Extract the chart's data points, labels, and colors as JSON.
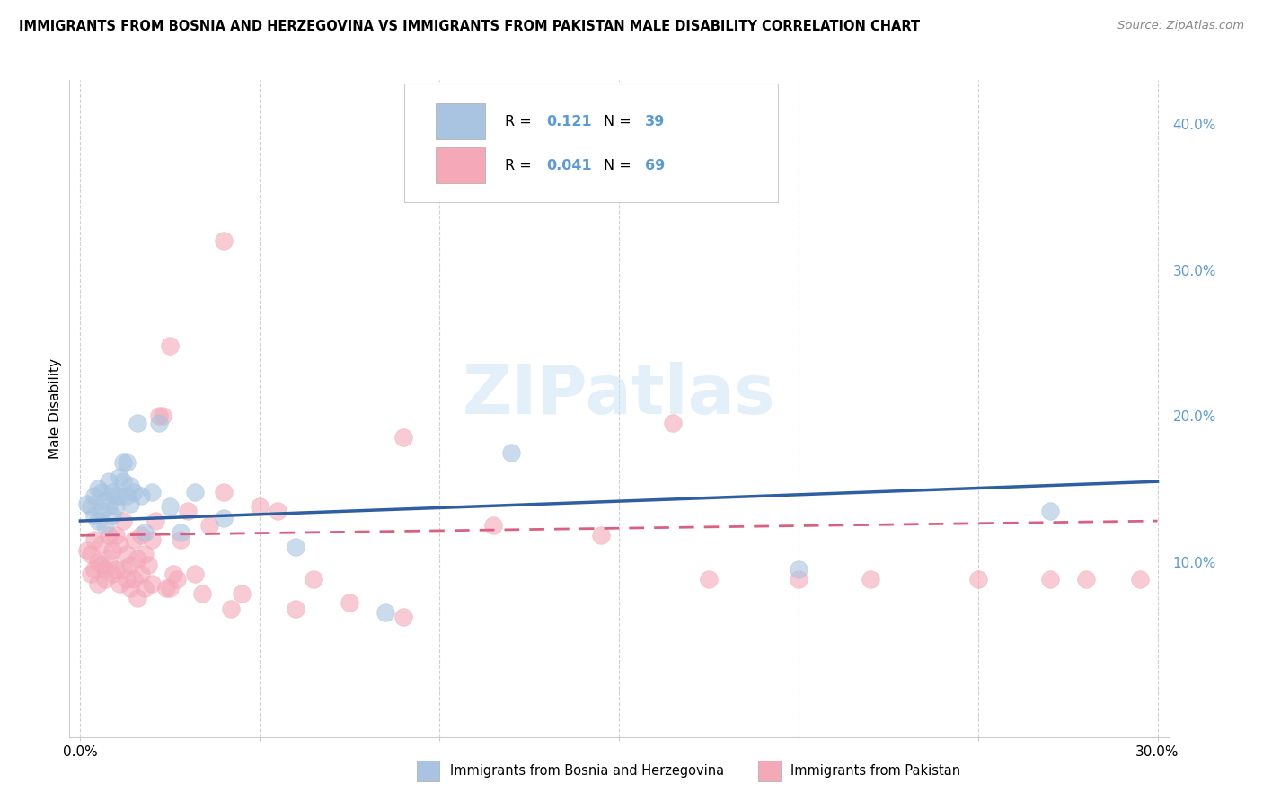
{
  "title": "IMMIGRANTS FROM BOSNIA AND HERZEGOVINA VS IMMIGRANTS FROM PAKISTAN MALE DISABILITY CORRELATION CHART",
  "source": "Source: ZipAtlas.com",
  "ylabel": "Male Disability",
  "bosnia_color": "#a8c4e0",
  "pakistan_color": "#f4a8b8",
  "bosnia_line_color": "#2e5fa3",
  "pakistan_line_color": "#d96080",
  "xlim": [
    0.0,
    0.3
  ],
  "ylim": [
    -0.02,
    0.43
  ],
  "yticks": [
    0.1,
    0.2,
    0.3,
    0.4
  ],
  "ytick_labels": [
    "10.0%",
    "20.0%",
    "30.0%",
    "40.0%"
  ],
  "xtick_labels": [
    "0.0%",
    "30.0%"
  ],
  "right_tick_color": "#5b9bd5",
  "grid_color": "#cccccc",
  "background_color": "#ffffff",
  "watermark": "ZIPatlas",
  "bos_line_x0": 0.0,
  "bos_line_y0": 0.128,
  "bos_line_x1": 0.3,
  "bos_line_y1": 0.155,
  "pak_line_x0": 0.0,
  "pak_line_y0": 0.118,
  "pak_line_x1": 0.3,
  "pak_line_y1": 0.128,
  "bosnia_x": [
    0.002,
    0.003,
    0.004,
    0.004,
    0.005,
    0.005,
    0.006,
    0.006,
    0.007,
    0.007,
    0.008,
    0.008,
    0.009,
    0.009,
    0.01,
    0.01,
    0.011,
    0.011,
    0.012,
    0.012,
    0.013,
    0.013,
    0.014,
    0.014,
    0.015,
    0.016,
    0.017,
    0.018,
    0.02,
    0.022,
    0.025,
    0.028,
    0.032,
    0.04,
    0.06,
    0.085,
    0.12,
    0.2,
    0.27
  ],
  "bosnia_y": [
    0.14,
    0.138,
    0.145,
    0.132,
    0.15,
    0.128,
    0.148,
    0.135,
    0.142,
    0.125,
    0.155,
    0.138,
    0.148,
    0.132,
    0.145,
    0.138,
    0.158,
    0.145,
    0.168,
    0.155,
    0.168,
    0.145,
    0.152,
    0.14,
    0.148,
    0.195,
    0.145,
    0.12,
    0.148,
    0.195,
    0.138,
    0.12,
    0.148,
    0.13,
    0.11,
    0.065,
    0.175,
    0.095,
    0.135
  ],
  "pakistan_x": [
    0.002,
    0.003,
    0.003,
    0.004,
    0.004,
    0.005,
    0.005,
    0.006,
    0.006,
    0.007,
    0.007,
    0.008,
    0.008,
    0.009,
    0.009,
    0.01,
    0.01,
    0.011,
    0.011,
    0.012,
    0.012,
    0.013,
    0.013,
    0.014,
    0.014,
    0.015,
    0.015,
    0.016,
    0.016,
    0.017,
    0.017,
    0.018,
    0.018,
    0.019,
    0.02,
    0.02,
    0.021,
    0.022,
    0.023,
    0.024,
    0.025,
    0.026,
    0.027,
    0.028,
    0.03,
    0.032,
    0.034,
    0.036,
    0.04,
    0.042,
    0.045,
    0.05,
    0.055,
    0.06,
    0.065,
    0.075,
    0.09,
    0.115,
    0.145,
    0.175,
    0.2,
    0.22,
    0.25,
    0.27,
    0.28,
    0.295,
    0.04,
    0.025,
    0.165,
    0.09
  ],
  "pakistan_y": [
    0.108,
    0.092,
    0.105,
    0.095,
    0.115,
    0.1,
    0.085,
    0.098,
    0.112,
    0.095,
    0.088,
    0.102,
    0.118,
    0.092,
    0.108,
    0.118,
    0.095,
    0.112,
    0.085,
    0.128,
    0.095,
    0.088,
    0.105,
    0.082,
    0.098,
    0.088,
    0.115,
    0.102,
    0.075,
    0.092,
    0.118,
    0.105,
    0.082,
    0.098,
    0.115,
    0.085,
    0.128,
    0.2,
    0.2,
    0.082,
    0.082,
    0.092,
    0.088,
    0.115,
    0.135,
    0.092,
    0.078,
    0.125,
    0.148,
    0.068,
    0.078,
    0.138,
    0.135,
    0.068,
    0.088,
    0.072,
    0.062,
    0.125,
    0.118,
    0.088,
    0.088,
    0.088,
    0.088,
    0.088,
    0.088,
    0.088,
    0.32,
    0.248,
    0.195,
    0.185
  ]
}
